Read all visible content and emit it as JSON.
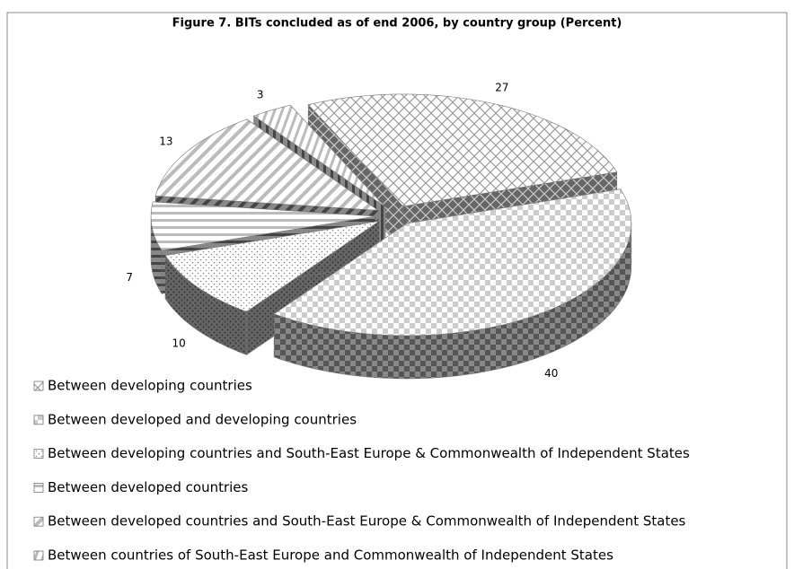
{
  "chart_data": {
    "type": "pie",
    "title": "Figure 7.  BITs concluded as of end 2006, by country group (Percent)",
    "categories": [
      "Between developing countries",
      "Between developed and developing countries",
      "Between developing countries and South-East Europe & Commonwealth of Independent States",
      "Between developed countries",
      "Between developed countries and South-East Europe & Commonwealth of Independent States",
      "Between countries of South-East Europe and Commonwealth of Independent States"
    ],
    "values": [
      27,
      40,
      10,
      7,
      13,
      3
    ]
  }
}
